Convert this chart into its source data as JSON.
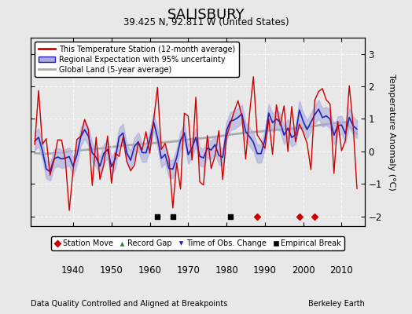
{
  "title": "SALISBURY",
  "subtitle": "39.425 N, 92.811 W (United States)",
  "xlabel_bottom": "Data Quality Controlled and Aligned at Breakpoints",
  "xlabel_right": "Berkeley Earth",
  "ylabel": "Temperature Anomaly (°C)",
  "xlim": [
    1929,
    2016
  ],
  "ylim": [
    -2.3,
    3.5
  ],
  "yticks": [
    -2,
    -1,
    0,
    1,
    2,
    3
  ],
  "xticks": [
    1940,
    1950,
    1960,
    1970,
    1980,
    1990,
    2000,
    2010
  ],
  "bg_color": "#e8e8e8",
  "plot_bg_color": "#e8e8e8",
  "legend_labels": [
    "This Temperature Station (12-month average)",
    "Regional Expectation with 95% uncertainty",
    "Global Land (5-year average)"
  ],
  "legend_colors": [
    "#cc0000",
    "#4444cc",
    "#aaaaaa"
  ],
  "station_move_years": [
    1988,
    1999,
    2003
  ],
  "empirical_break_years": [
    1962,
    1966,
    1981
  ],
  "time_obs_years": [],
  "record_gap_years": [],
  "marker_y": -2.15,
  "seed": 42
}
